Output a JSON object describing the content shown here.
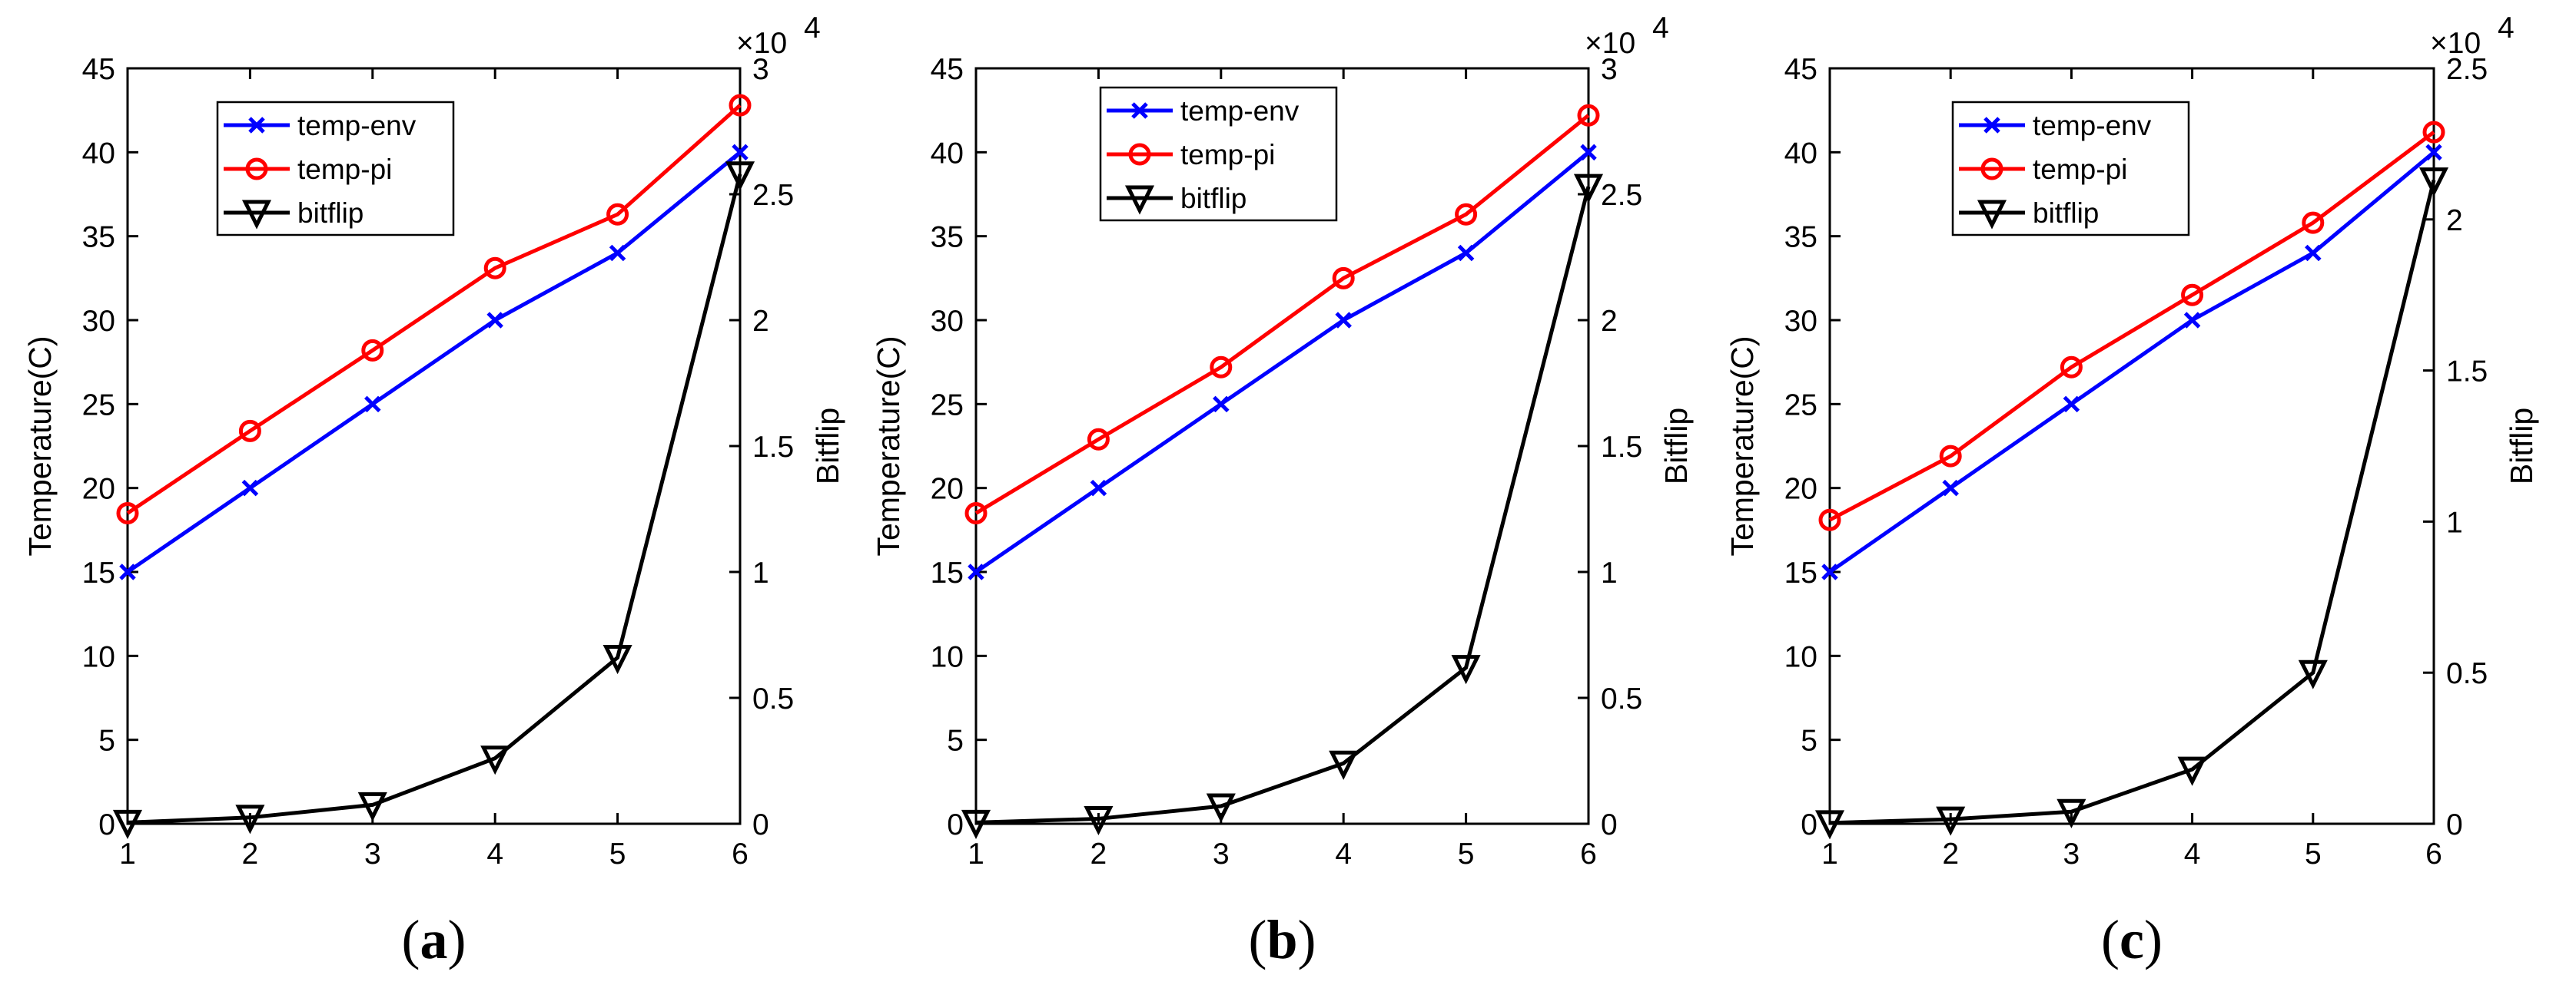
{
  "colors": {
    "temp_env": "#0000ff",
    "temp_pi": "#ff0000",
    "bitflip": "#000000",
    "axis": "#000000"
  },
  "chart_data": [
    {
      "type": "line",
      "panel_label": "a",
      "x": [
        1,
        2,
        3,
        4,
        5,
        6
      ],
      "x_ticks": [
        "1",
        "2",
        "3",
        "4",
        "5",
        "6"
      ],
      "xlim": [
        1,
        6
      ],
      "ylabel_left": "Temperature(C)",
      "ylim_left": [
        0,
        45
      ],
      "y_ticks_left": [
        "0",
        "5",
        "10",
        "15",
        "20",
        "25",
        "30",
        "35",
        "40",
        "45"
      ],
      "ylabel_right": "Bitflip",
      "ylim_right": [
        0,
        30000
      ],
      "y_ticks_right": [
        "0",
        "0.5",
        "1",
        "1.5",
        "2",
        "2.5",
        "3"
      ],
      "right_exponent_base": "×10",
      "right_exponent_power": "4",
      "series": [
        {
          "name": "temp-env",
          "axis": "left",
          "marker": "x",
          "values": [
            15,
            20,
            25,
            30,
            34,
            40
          ]
        },
        {
          "name": "temp-pi",
          "axis": "left",
          "marker": "o",
          "values": [
            18.5,
            23.4,
            28.2,
            33.1,
            36.3,
            42.8
          ]
        },
        {
          "name": "bitflip",
          "axis": "right",
          "marker": "v",
          "values": [
            50,
            250,
            750,
            2600,
            6600,
            25800
          ]
        }
      ],
      "legend": "upper-left"
    },
    {
      "type": "line",
      "panel_label": "b",
      "x": [
        1,
        2,
        3,
        4,
        5,
        6
      ],
      "x_ticks": [
        "1",
        "2",
        "3",
        "4",
        "5",
        "6"
      ],
      "xlim": [
        1,
        6
      ],
      "ylabel_left": "Temperature(C)",
      "ylim_left": [
        0,
        45
      ],
      "y_ticks_left": [
        "0",
        "5",
        "10",
        "15",
        "20",
        "25",
        "30",
        "35",
        "40",
        "45"
      ],
      "ylabel_right": "Bitflip",
      "ylim_right": [
        0,
        30000
      ],
      "y_ticks_right": [
        "0",
        "0.5",
        "1",
        "1.5",
        "2",
        "2.5",
        "3"
      ],
      "right_exponent_base": "×10",
      "right_exponent_power": "4",
      "series": [
        {
          "name": "temp-env",
          "axis": "left",
          "marker": "x",
          "values": [
            15,
            20,
            25,
            30,
            34,
            40
          ]
        },
        {
          "name": "temp-pi",
          "axis": "left",
          "marker": "o",
          "values": [
            18.5,
            22.9,
            27.2,
            32.5,
            36.3,
            42.2
          ]
        },
        {
          "name": "bitflip",
          "axis": "right",
          "marker": "v",
          "values": [
            50,
            200,
            700,
            2400,
            6200,
            25300
          ]
        }
      ],
      "legend": "upper-left"
    },
    {
      "type": "line",
      "panel_label": "c",
      "x": [
        1,
        2,
        3,
        4,
        5,
        6
      ],
      "x_ticks": [
        "1",
        "2",
        "3",
        "4",
        "5",
        "6"
      ],
      "xlim": [
        1,
        6
      ],
      "ylabel_left": "Temperature(C)",
      "ylim_left": [
        0,
        45
      ],
      "y_ticks_left": [
        "0",
        "5",
        "10",
        "15",
        "20",
        "25",
        "30",
        "35",
        "40",
        "45"
      ],
      "ylabel_right": "Bitflip",
      "ylim_right": [
        0,
        25000
      ],
      "y_ticks_right": [
        "0",
        "0.5",
        "1",
        "1.5",
        "2",
        "2.5"
      ],
      "right_exponent_base": "×10",
      "right_exponent_power": "4",
      "series": [
        {
          "name": "temp-env",
          "axis": "left",
          "marker": "x",
          "values": [
            15,
            20,
            25,
            30,
            34,
            40
          ]
        },
        {
          "name": "temp-pi",
          "axis": "left",
          "marker": "o",
          "values": [
            18.1,
            21.9,
            27.2,
            31.5,
            35.8,
            41.2
          ]
        },
        {
          "name": "bitflip",
          "axis": "right",
          "marker": "v",
          "values": [
            30,
            150,
            400,
            1800,
            5000,
            21300
          ]
        }
      ],
      "legend": "upper-left"
    }
  ]
}
